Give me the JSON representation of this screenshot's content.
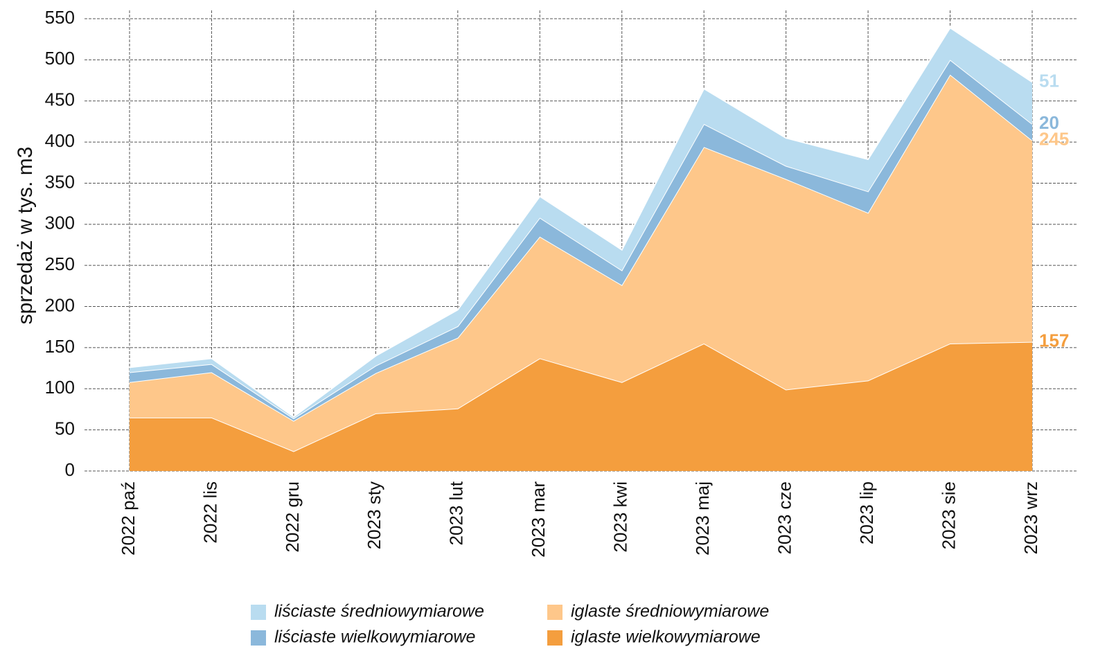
{
  "chart_data": {
    "type": "stacked_area",
    "y_label": "sprzedaż w tys. m3",
    "categories": [
      "2022 paź",
      "2022 lis",
      "2022 gru",
      "2023 sty",
      "2023 lut",
      "2023 mar",
      "2023 kwi",
      "2023 maj",
      "2023 cze",
      "2023 lip",
      "2023 sie",
      "2023 wrz"
    ],
    "series": [
      {
        "name": "iglaste wielkowymiarowe",
        "color": "#f49e3e",
        "values": [
          65,
          65,
          24,
          70,
          76,
          137,
          108,
          155,
          99,
          110,
          155,
          157
        ]
      },
      {
        "name": "iglaste średniowymiarowe",
        "color": "#fec78a",
        "values": [
          43,
          55,
          37,
          49,
          86,
          148,
          118,
          239,
          256,
          204,
          327,
          245
        ]
      },
      {
        "name": "liściaste wielkowymiarowe",
        "color": "#8bb8db",
        "values": [
          12,
          10,
          3,
          9,
          14,
          23,
          18,
          28,
          16,
          26,
          18,
          20
        ]
      },
      {
        "name": "liściaste średniowymiarowe",
        "color": "#b9dcf0",
        "values": [
          6,
          7,
          2,
          12,
          20,
          26,
          25,
          43,
          34,
          39,
          39,
          51
        ]
      }
    ],
    "ylim": [
      0,
      550
    ],
    "yticks": [
      0,
      50,
      100,
      150,
      200,
      250,
      300,
      350,
      400,
      450,
      500,
      550
    ],
    "grid": true
  }
}
